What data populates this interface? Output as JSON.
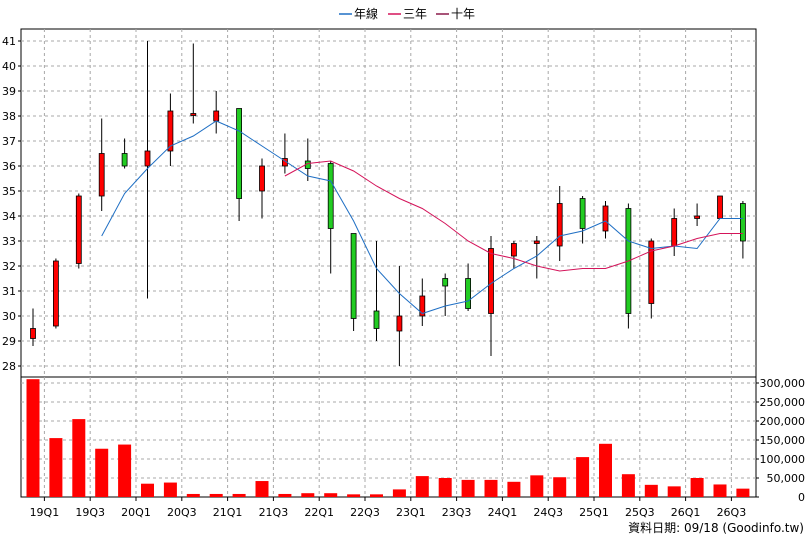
{
  "chart_data": {
    "type": "candlestick",
    "legend": [
      {
        "name": "年線",
        "color": "#1f6fc4"
      },
      {
        "name": "三年",
        "color": "#d4145a"
      },
      {
        "name": "十年",
        "color": "#8b1a4a"
      }
    ],
    "price_axis": {
      "min": 28,
      "max": 41,
      "ticks": [
        28,
        29,
        30,
        31,
        32,
        33,
        34,
        35,
        36,
        37,
        38,
        39,
        40,
        41
      ]
    },
    "volume_axis": {
      "min": 0,
      "max": 300000,
      "tick_values": [
        0,
        50000,
        100000,
        150000,
        200000,
        250000,
        300000
      ],
      "tick_labels": [
        "0",
        "50,000",
        "100,000",
        "150,000",
        "200,000",
        "250,000",
        "300,000"
      ]
    },
    "x_tick_labels": [
      {
        "label": "19Q1",
        "index": 1
      },
      {
        "label": "19Q3",
        "index": 3
      },
      {
        "label": "20Q1",
        "index": 5
      },
      {
        "label": "20Q3",
        "index": 7
      },
      {
        "label": "21Q1",
        "index": 9
      },
      {
        "label": "21Q3",
        "index": 11
      },
      {
        "label": "22Q1",
        "index": 13
      },
      {
        "label": "22Q3",
        "index": 15
      },
      {
        "label": "23Q1",
        "index": 17
      },
      {
        "label": "23Q3",
        "index": 19
      },
      {
        "label": "24Q1",
        "index": 21
      },
      {
        "label": "24Q3",
        "index": 23
      },
      {
        "label": "25Q1",
        "index": 25
      },
      {
        "label": "25Q3",
        "index": 27
      },
      {
        "label": "26Q1",
        "index": 29
      },
      {
        "label": "26Q3",
        "index": 31
      }
    ],
    "candles": [
      {
        "open": 29.1,
        "high": 30.3,
        "low": 28.8,
        "close": 29.5,
        "volume": 310000
      },
      {
        "open": 29.6,
        "high": 32.3,
        "low": 29.5,
        "close": 32.2,
        "volume": 155000
      },
      {
        "open": 32.1,
        "high": 34.9,
        "low": 31.9,
        "close": 34.8,
        "volume": 205000
      },
      {
        "open": 34.8,
        "high": 37.9,
        "low": 34.2,
        "close": 36.5,
        "volume": 127000
      },
      {
        "open": 36.5,
        "high": 37.1,
        "low": 35.9,
        "close": 36.0,
        "volume": 138000
      },
      {
        "open": 36.0,
        "high": 41.0,
        "low": 30.7,
        "close": 36.6,
        "volume": 35000
      },
      {
        "open": 36.6,
        "high": 38.9,
        "low": 36.0,
        "close": 38.2,
        "volume": 38000
      },
      {
        "open": 38.1,
        "high": 40.9,
        "low": 37.7,
        "close": 38.1,
        "volume": 8000
      },
      {
        "open": 37.8,
        "high": 39.0,
        "low": 37.3,
        "close": 38.2,
        "volume": 8000
      },
      {
        "open": 38.3,
        "high": 38.3,
        "low": 33.8,
        "close": 34.7,
        "volume": 8000
      },
      {
        "open": 35.0,
        "high": 36.3,
        "low": 33.9,
        "close": 36.0,
        "volume": 42000
      },
      {
        "open": 36.0,
        "high": 37.3,
        "low": 35.7,
        "close": 36.3,
        "volume": 8000
      },
      {
        "open": 36.2,
        "high": 37.1,
        "low": 35.4,
        "close": 35.9,
        "volume": 10000
      },
      {
        "open": 36.1,
        "high": 36.2,
        "low": 31.7,
        "close": 33.5,
        "volume": 10000
      },
      {
        "open": 33.3,
        "high": 33.3,
        "low": 29.4,
        "close": 29.9,
        "volume": 7000
      },
      {
        "open": 30.2,
        "high": 33.0,
        "low": 29.0,
        "close": 29.5,
        "volume": 7000
      },
      {
        "open": 29.4,
        "high": 32.0,
        "low": 28.0,
        "close": 30.0,
        "volume": 20000
      },
      {
        "open": 30.0,
        "high": 31.5,
        "low": 29.6,
        "close": 30.8,
        "volume": 55000
      },
      {
        "open": 31.5,
        "high": 31.7,
        "low": 30.0,
        "close": 31.2,
        "volume": 50000
      },
      {
        "open": 31.5,
        "high": 32.1,
        "low": 30.2,
        "close": 30.3,
        "volume": 45000
      },
      {
        "open": 30.1,
        "high": 33.2,
        "low": 28.4,
        "close": 32.7,
        "volume": 45000
      },
      {
        "open": 32.4,
        "high": 33.0,
        "low": 31.9,
        "close": 32.9,
        "volume": 40000
      },
      {
        "open": 32.9,
        "high": 33.2,
        "low": 31.5,
        "close": 33.0,
        "volume": 57000
      },
      {
        "open": 32.8,
        "high": 35.2,
        "low": 32.2,
        "close": 34.5,
        "volume": 52000
      },
      {
        "open": 34.7,
        "high": 34.8,
        "low": 32.9,
        "close": 33.5,
        "volume": 105000
      },
      {
        "open": 33.4,
        "high": 34.6,
        "low": 33.1,
        "close": 34.4,
        "volume": 140000
      },
      {
        "open": 34.3,
        "high": 34.5,
        "low": 29.5,
        "close": 30.1,
        "volume": 60000
      },
      {
        "open": 30.5,
        "high": 33.1,
        "low": 29.9,
        "close": 33.0,
        "volume": 32000
      },
      {
        "open": 32.8,
        "high": 34.3,
        "low": 32.4,
        "close": 33.9,
        "volume": 28000
      },
      {
        "open": 33.9,
        "high": 34.5,
        "low": 33.6,
        "close": 34.0,
        "volume": 50000
      },
      {
        "open": 33.9,
        "high": 34.8,
        "low": 33.9,
        "close": 34.8,
        "volume": 33000
      },
      {
        "open": 34.5,
        "high": 34.6,
        "low": 32.3,
        "close": 33.0,
        "volume": 22000
      }
    ],
    "series": [
      {
        "name": "年線",
        "points": [
          [
            3,
            33.2
          ],
          [
            4,
            34.9
          ],
          [
            5,
            35.9
          ],
          [
            6,
            36.8
          ],
          [
            7,
            37.2
          ],
          [
            8,
            37.8
          ],
          [
            9,
            37.4
          ],
          [
            10,
            36.8
          ],
          [
            11,
            36.2
          ],
          [
            12,
            35.6
          ],
          [
            13,
            35.4
          ],
          [
            14,
            33.8
          ],
          [
            15,
            31.9
          ],
          [
            16,
            30.9
          ],
          [
            17,
            30.1
          ],
          [
            18,
            30.4
          ],
          [
            19,
            30.6
          ],
          [
            20,
            31.3
          ],
          [
            21,
            31.9
          ],
          [
            22,
            32.4
          ],
          [
            23,
            33.2
          ],
          [
            24,
            33.4
          ],
          [
            25,
            33.8
          ],
          [
            26,
            33.0
          ],
          [
            27,
            32.7
          ],
          [
            28,
            32.8
          ],
          [
            29,
            32.7
          ],
          [
            30,
            33.9
          ],
          [
            31,
            33.9
          ]
        ]
      },
      {
        "name": "三年",
        "points": [
          [
            11,
            35.6
          ],
          [
            12,
            36.1
          ],
          [
            13,
            36.2
          ],
          [
            14,
            35.8
          ],
          [
            15,
            35.2
          ],
          [
            16,
            34.7
          ],
          [
            17,
            34.3
          ],
          [
            18,
            33.7
          ],
          [
            19,
            33.0
          ],
          [
            20,
            32.5
          ],
          [
            21,
            32.3
          ],
          [
            22,
            32.0
          ],
          [
            23,
            31.8
          ],
          [
            24,
            31.9
          ],
          [
            25,
            31.9
          ],
          [
            26,
            32.2
          ],
          [
            27,
            32.6
          ],
          [
            28,
            32.8
          ],
          [
            29,
            33.1
          ],
          [
            30,
            33.3
          ],
          [
            31,
            33.3
          ]
        ]
      }
    ],
    "grid": true,
    "legend_position": "top",
    "footer_text": "資料日期: 09/18  (Goodinfo.tw)"
  }
}
